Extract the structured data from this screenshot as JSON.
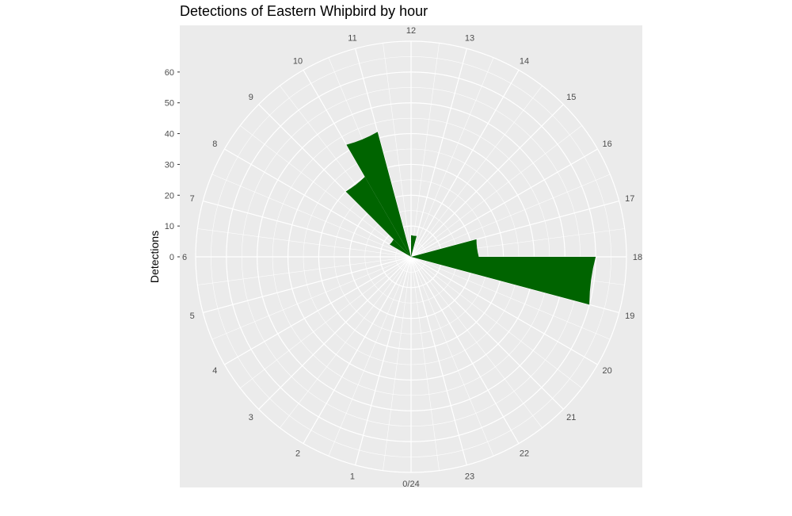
{
  "chart_data": {
    "type": "bar",
    "coord": "polar",
    "title": "Detections of Eastern Whipbird by hour",
    "xlabel": "",
    "ylabel": "Detections",
    "x_tick_labels": [
      "0/24",
      "1",
      "2",
      "3",
      "4",
      "5",
      "6",
      "7",
      "8",
      "9",
      "10",
      "11",
      "12",
      "13",
      "14",
      "15",
      "16",
      "17",
      "18",
      "19",
      "20",
      "21",
      "22",
      "23"
    ],
    "y_ticks": [
      0,
      10,
      20,
      30,
      40,
      50,
      60
    ],
    "ylim": [
      0,
      70
    ],
    "bar_color": "#006400",
    "panel_background": "#ebebeb",
    "grid_color": "#ffffff",
    "hours": [
      0,
      1,
      2,
      3,
      4,
      5,
      6,
      7,
      8,
      9,
      10,
      11,
      12,
      13,
      14,
      15,
      16,
      17,
      18,
      19,
      20,
      21,
      22,
      23
    ],
    "values": [
      0,
      0,
      0,
      0,
      0,
      0,
      0,
      0,
      8,
      30,
      42,
      0,
      7,
      0,
      0,
      0,
      0,
      22,
      60,
      0,
      0,
      0,
      0,
      0
    ]
  }
}
